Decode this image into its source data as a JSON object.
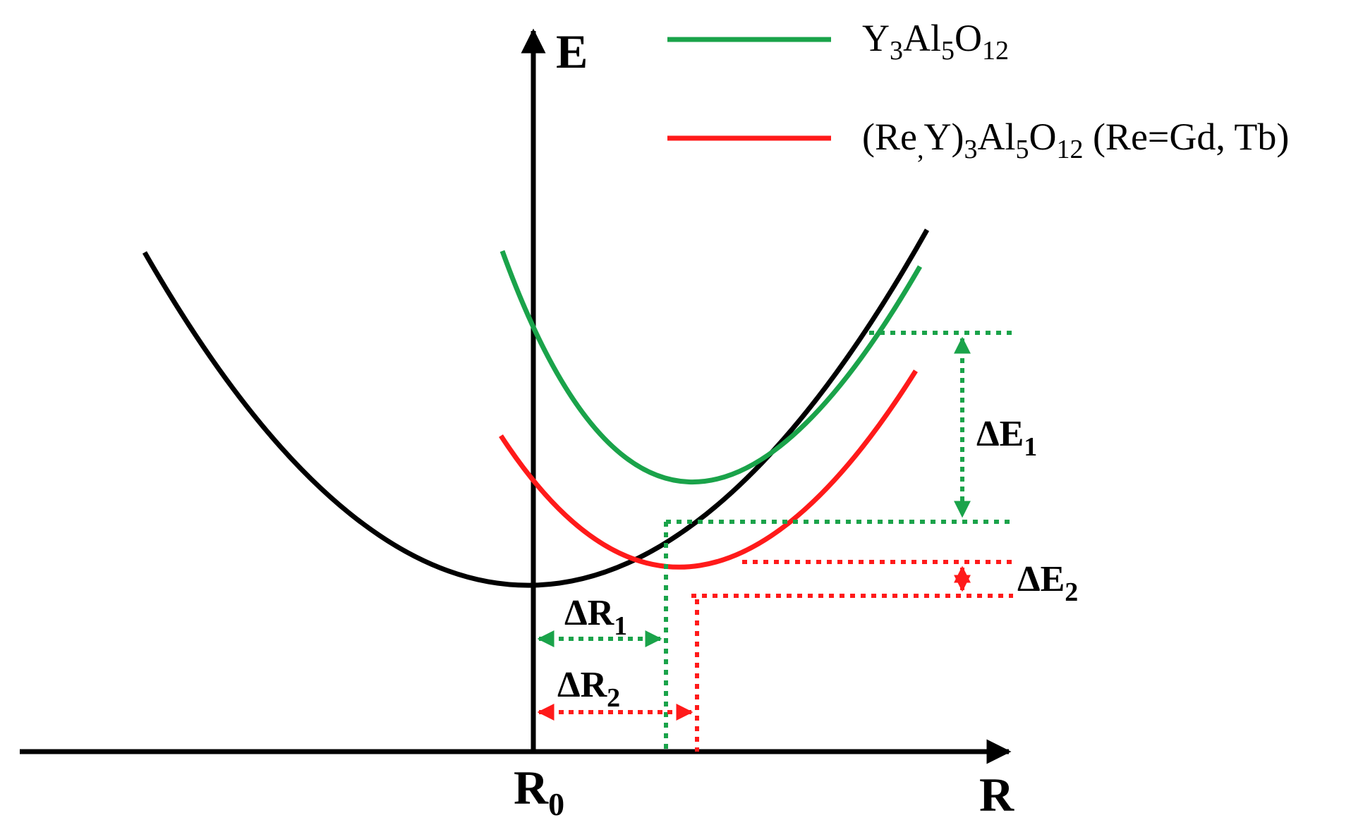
{
  "colors": {
    "axis": "#000000",
    "ground_curve": "#000000",
    "yag_curve": "#1aa34a",
    "doped_curve": "#ff1a1a"
  },
  "axes": {
    "y_label": "E",
    "x_label": "R",
    "origin_label": "R",
    "origin_sub": "0"
  },
  "legend": [
    {
      "id": "yag",
      "color": "#1aa34a",
      "parts": [
        {
          "t": "Y",
          "sub": false
        },
        {
          "t": "3",
          "sub": true
        },
        {
          "t": "Al",
          "sub": false
        },
        {
          "t": "5",
          "sub": true
        },
        {
          "t": "O",
          "sub": false
        },
        {
          "t": "12",
          "sub": true
        }
      ]
    },
    {
      "id": "doped",
      "color": "#ff1a1a",
      "parts": [
        {
          "t": "(Re",
          "sub": false
        },
        {
          "t": ",",
          "sub": true
        },
        {
          "t": "Y)",
          "sub": false
        },
        {
          "t": "3",
          "sub": true
        },
        {
          "t": "Al",
          "sub": false
        },
        {
          "t": "5",
          "sub": true
        },
        {
          "t": "O",
          "sub": false
        },
        {
          "t": "12",
          "sub": true
        },
        {
          "t": " (Re=Gd, Tb)",
          "sub": false
        }
      ]
    }
  ],
  "annotations": {
    "dE1": {
      "base": "ΔE",
      "sub": "1"
    },
    "dE2": {
      "base": "ΔE",
      "sub": "2"
    },
    "dR1": {
      "base": "ΔR",
      "sub": "1"
    },
    "dR2": {
      "base": "ΔR",
      "sub": "2"
    }
  }
}
